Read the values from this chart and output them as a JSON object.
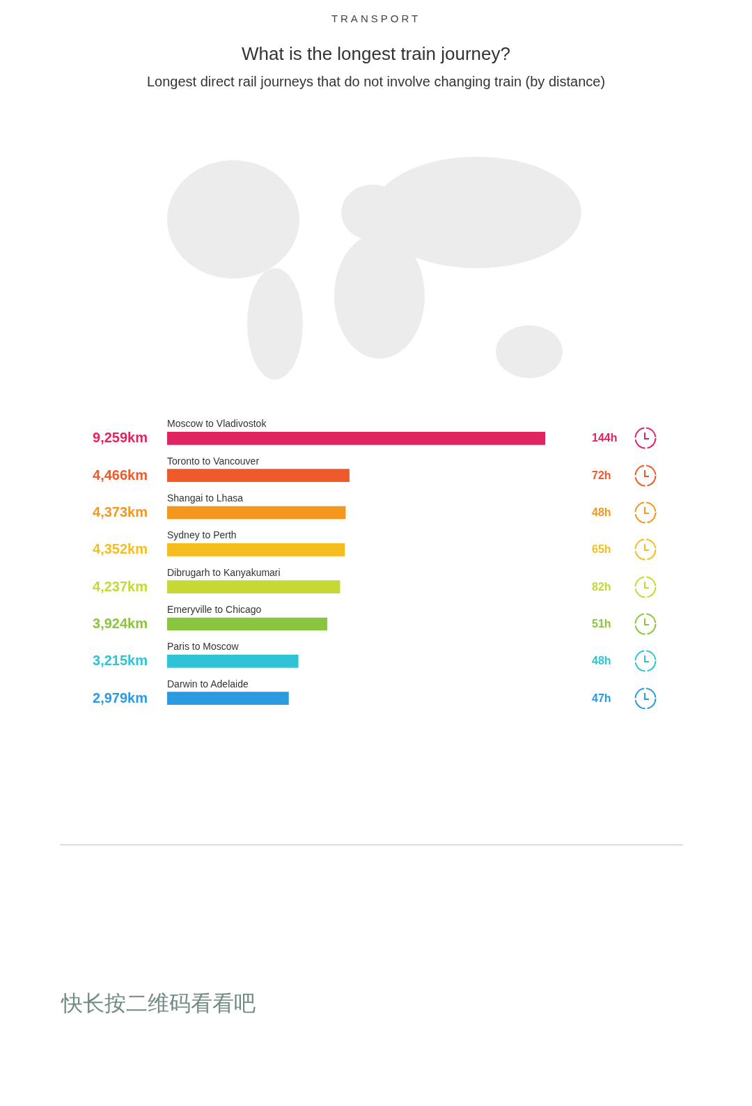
{
  "chart_data": {
    "type": "bar",
    "orientation": "horizontal",
    "title": "What is the longest train journey?",
    "subtitle": "Longest direct rail journeys that do not involve changing train (by distance)",
    "categories": [
      "Moscow to Vladivostok",
      "Toronto to Vancouver",
      "Shangai to Lhasa",
      "Sydney to Perth",
      "Dibrugarh to Kanyakumari",
      "Emeryville to Chicago",
      "Paris to Moscow",
      "Darwin to Adelaide"
    ],
    "values": [
      9259,
      4466,
      4373,
      4352,
      4237,
      3924,
      3215,
      2979
    ],
    "value_labels": [
      "9,259km",
      "4,466km",
      "4,373km",
      "4,352km",
      "4,237km",
      "3,924km",
      "3,215km",
      "2,979km"
    ],
    "colors": [
      "#e0245e",
      "#ef5a2a",
      "#f5961d",
      "#f6bd1e",
      "#c5d834",
      "#8bc53f",
      "#2ec3d7",
      "#2a9be0"
    ],
    "tick_labels": false,
    "annotations": [
      "TRANSPORT",
      "144h",
      "72h",
      "48h",
      "65h",
      "82h",
      "51h",
      "48h",
      "47h",
      "快长按二维码看看吧"
    ]
  }
}
